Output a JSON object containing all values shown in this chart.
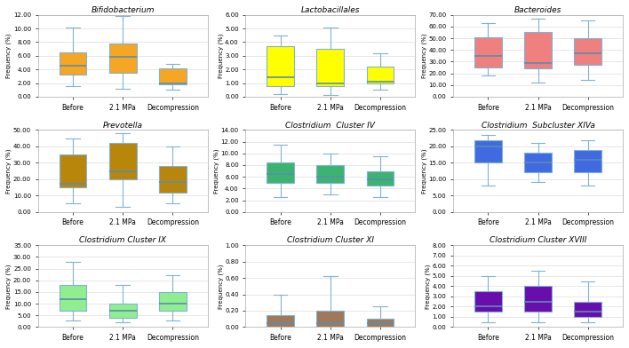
{
  "plots": [
    {
      "title": "Bifidobacterium",
      "color": "#F5A623",
      "ylim": [
        0,
        12
      ],
      "yticks": [
        0,
        2,
        4,
        6,
        8,
        10,
        12
      ],
      "ytick_labels": [
        "0.00",
        "2.00",
        "4.00",
        "6.00",
        "8.00",
        "10.00",
        "12.00"
      ],
      "boxes": [
        {
          "whislo": 1.5,
          "q1": 3.2,
          "med": 4.5,
          "q3": 6.5,
          "whishi": 10.2
        },
        {
          "whislo": 1.2,
          "q1": 3.5,
          "med": 5.8,
          "q3": 7.8,
          "whishi": 11.8
        },
        {
          "whislo": 1.0,
          "q1": 1.8,
          "med": 2.0,
          "q3": 4.2,
          "whishi": 4.8
        }
      ]
    },
    {
      "title": "Lactobacillales",
      "color": "#FFFF00",
      "ylim": [
        0,
        6
      ],
      "yticks": [
        0,
        1,
        2,
        3,
        4,
        5,
        6
      ],
      "ytick_labels": [
        "0.00",
        "1.00",
        "2.00",
        "3.00",
        "4.00",
        "5.00",
        "6.00"
      ],
      "boxes": [
        {
          "whislo": 0.2,
          "q1": 0.8,
          "med": 1.4,
          "q3": 3.7,
          "whishi": 4.5
        },
        {
          "whislo": 0.1,
          "q1": 0.8,
          "med": 1.0,
          "q3": 3.5,
          "whishi": 5.1
        },
        {
          "whislo": 0.5,
          "q1": 1.0,
          "med": 1.1,
          "q3": 2.2,
          "whishi": 3.2
        }
      ]
    },
    {
      "title": "Bacteroides",
      "color": "#F08080",
      "ylim": [
        0,
        70
      ],
      "yticks": [
        0,
        10,
        20,
        30,
        40,
        50,
        60,
        70
      ],
      "ytick_labels": [
        "0.00",
        "10.00",
        "20.00",
        "30.00",
        "40.00",
        "50.00",
        "60.00",
        "70.00"
      ],
      "boxes": [
        {
          "whislo": 18.0,
          "q1": 25.0,
          "med": 35.0,
          "q3": 51.0,
          "whishi": 63.0
        },
        {
          "whislo": 12.0,
          "q1": 24.0,
          "med": 29.0,
          "q3": 55.0,
          "whishi": 67.0
        },
        {
          "whislo": 14.0,
          "q1": 27.0,
          "med": 37.0,
          "q3": 50.0,
          "whishi": 65.0
        }
      ]
    },
    {
      "title": "Prevotella",
      "color": "#B8860B",
      "ylim": [
        0,
        50
      ],
      "yticks": [
        0,
        10,
        20,
        30,
        40,
        50
      ],
      "ytick_labels": [
        "0.00",
        "10.00",
        "20.00",
        "30.00",
        "40.00",
        "50.00"
      ],
      "boxes": [
        {
          "whislo": 5.0,
          "q1": 15.0,
          "med": 17.0,
          "q3": 35.0,
          "whishi": 45.0
        },
        {
          "whislo": 3.0,
          "q1": 20.0,
          "med": 25.0,
          "q3": 42.0,
          "whishi": 48.0
        },
        {
          "whislo": 5.0,
          "q1": 12.0,
          "med": 18.0,
          "q3": 28.0,
          "whishi": 40.0
        }
      ]
    },
    {
      "title": "Clostridium  Cluster IV",
      "color": "#3CB371",
      "ylim": [
        0,
        14
      ],
      "yticks": [
        0,
        2,
        4,
        6,
        8,
        10,
        12,
        14
      ],
      "ytick_labels": [
        "0.00",
        "2.00",
        "4.00",
        "6.00",
        "8.00",
        "10.00",
        "12.00",
        "14.00"
      ],
      "boxes": [
        {
          "whislo": 2.5,
          "q1": 5.0,
          "med": 6.5,
          "q3": 8.5,
          "whishi": 11.5
        },
        {
          "whislo": 3.0,
          "q1": 5.0,
          "med": 6.0,
          "q3": 8.0,
          "whishi": 10.0
        },
        {
          "whislo": 2.5,
          "q1": 4.5,
          "med": 5.5,
          "q3": 7.0,
          "whishi": 9.5
        }
      ]
    },
    {
      "title": "Clostridium  Subcluster XIVa",
      "color": "#4169E1",
      "ylim": [
        0,
        25
      ],
      "yticks": [
        0,
        5,
        10,
        15,
        20,
        25
      ],
      "ytick_labels": [
        "0.00",
        "5.00",
        "10.00",
        "15.00",
        "20.00",
        "25.00"
      ],
      "boxes": [
        {
          "whislo": 8.0,
          "q1": 15.0,
          "med": 20.0,
          "q3": 22.0,
          "whishi": 23.5
        },
        {
          "whislo": 9.0,
          "q1": 12.0,
          "med": 15.0,
          "q3": 18.0,
          "whishi": 21.0
        },
        {
          "whislo": 8.0,
          "q1": 12.0,
          "med": 16.0,
          "q3": 19.0,
          "whishi": 22.0
        }
      ]
    },
    {
      "title": "Clostridium Cluster IX",
      "color": "#90EE90",
      "ylim": [
        0,
        35
      ],
      "yticks": [
        0,
        5,
        10,
        15,
        20,
        25,
        30,
        35
      ],
      "ytick_labels": [
        "0.00",
        "5.00",
        "10.00",
        "15.00",
        "20.00",
        "25.00",
        "30.00",
        "35.00"
      ],
      "boxes": [
        {
          "whislo": 3.0,
          "q1": 7.0,
          "med": 12.0,
          "q3": 18.0,
          "whishi": 28.0
        },
        {
          "whislo": 2.0,
          "q1": 4.0,
          "med": 7.0,
          "q3": 10.0,
          "whishi": 18.0
        },
        {
          "whislo": 3.0,
          "q1": 7.0,
          "med": 10.0,
          "q3": 15.0,
          "whishi": 22.0
        }
      ]
    },
    {
      "title": "Clostridium Cluster XI",
      "color": "#A0785A",
      "ylim": [
        0,
        1.0
      ],
      "yticks": [
        0,
        0.2,
        0.4,
        0.6,
        0.8,
        1.0
      ],
      "ytick_labels": [
        "0.00",
        "0.20",
        "0.40",
        "0.60",
        "0.80",
        "1.00"
      ],
      "boxes": [
        {
          "whislo": 0.0,
          "q1": 0.0,
          "med": 0.05,
          "q3": 0.15,
          "whishi": 0.4
        },
        {
          "whislo": 0.0,
          "q1": 0.0,
          "med": 0.05,
          "q3": 0.2,
          "whishi": 0.62
        },
        {
          "whislo": 0.0,
          "q1": 0.0,
          "med": 0.05,
          "q3": 0.1,
          "whishi": 0.25
        }
      ]
    },
    {
      "title": "Clostridium Cluster XVIII",
      "color": "#6A0DAD",
      "ylim": [
        0,
        8
      ],
      "yticks": [
        0,
        1,
        2,
        3,
        4,
        5,
        6,
        7,
        8
      ],
      "ytick_labels": [
        "0.00",
        "1.00",
        "2.00",
        "3.00",
        "4.00",
        "5.00",
        "6.00",
        "7.00",
        "8.00"
      ],
      "boxes": [
        {
          "whislo": 0.5,
          "q1": 1.5,
          "med": 2.0,
          "q3": 3.5,
          "whishi": 5.0
        },
        {
          "whislo": 0.5,
          "q1": 1.5,
          "med": 2.5,
          "q3": 4.0,
          "whishi": 5.5
        },
        {
          "whislo": 0.5,
          "q1": 1.0,
          "med": 1.5,
          "q3": 2.5,
          "whishi": 4.5
        }
      ]
    }
  ],
  "categories": [
    "Before",
    "2.1 MPa",
    "Decompression"
  ],
  "ylabel": "Frequency (%)",
  "whisker_color": "#7EB3D5",
  "median_color": "#5B8DB0",
  "box_edge_color": "#7EB3D5",
  "flier_color": "#7EB3D5",
  "background_color": "#FFFFFF",
  "grid_color": "#DDDDDD",
  "title_style": "italic"
}
